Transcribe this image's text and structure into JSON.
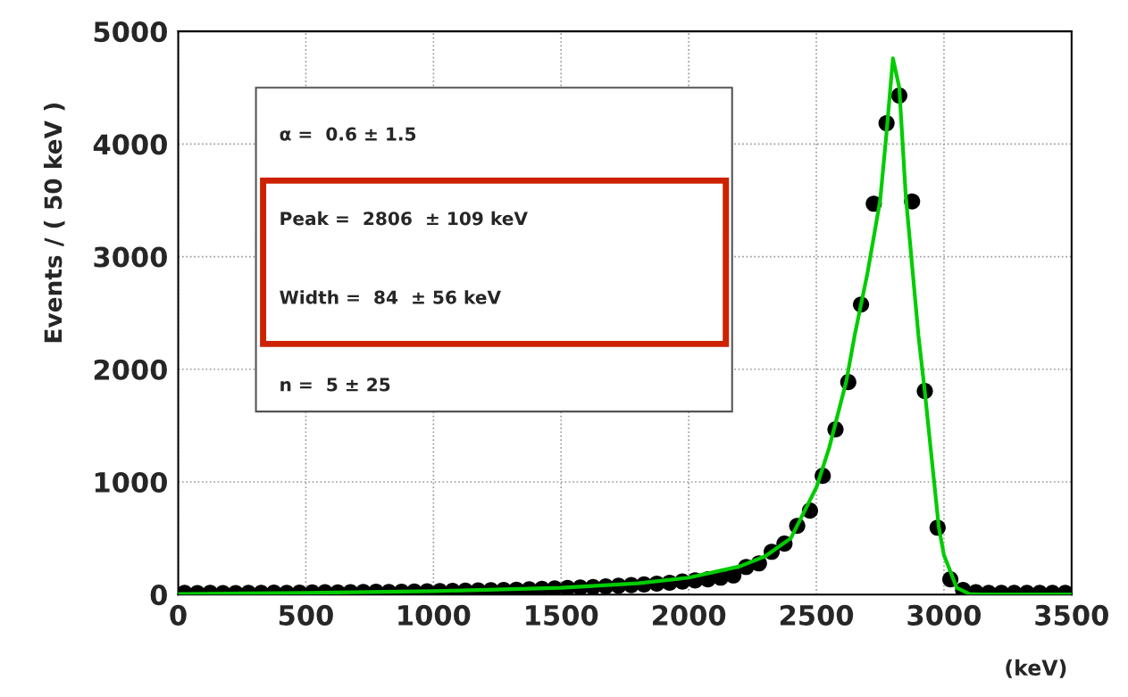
{
  "chart_data": {
    "type": "scatter",
    "xlabel": "(keV)",
    "ylabel": "Events / ( 50 keV )",
    "xlim": [
      0,
      3500
    ],
    "ylim": [
      0,
      5000
    ],
    "xticks": [
      0,
      500,
      1000,
      1500,
      2000,
      2500,
      3000,
      3500
    ],
    "yticks": [
      0,
      1000,
      2000,
      3000,
      4000,
      5000
    ],
    "grid": true,
    "legend": false,
    "series": [
      {
        "color": "#000000",
        "marker": "circle",
        "x": [
          25,
          75,
          125,
          175,
          225,
          275,
          325,
          375,
          425,
          475,
          525,
          575,
          625,
          675,
          725,
          775,
          825,
          875,
          925,
          975,
          1025,
          1075,
          1125,
          1175,
          1225,
          1275,
          1325,
          1375,
          1425,
          1475,
          1525,
          1575,
          1625,
          1675,
          1725,
          1775,
          1825,
          1875,
          1925,
          1975,
          2025,
          2075,
          2125,
          2175,
          2225,
          2275,
          2325,
          2375,
          2425,
          2475,
          2525,
          2575,
          2625,
          2675,
          2725,
          2775,
          2825,
          2875,
          2925,
          2975,
          3025,
          3075,
          3125,
          3175,
          3225,
          3275,
          3325,
          3375,
          3425,
          3475
        ],
        "values": [
          15,
          12,
          14,
          13,
          12,
          15,
          14,
          16,
          15,
          17,
          18,
          20,
          19,
          21,
          22,
          24,
          23,
          25,
          26,
          28,
          30,
          32,
          34,
          36,
          38,
          40,
          43,
          46,
          50,
          54,
          58,
          62,
          66,
          72,
          78,
          84,
          90,
          97,
          105,
          115,
          125,
          135,
          150,
          170,
          245,
          277,
          380,
          452,
          610,
          745,
          1054,
          1466,
          1886,
          2575,
          3470,
          4185,
          4430,
          3490,
          1807,
          594,
          135,
          40,
          20,
          15,
          15,
          15,
          15,
          15,
          15,
          15
        ]
      },
      {
        "type": "line",
        "color": "#00cc00",
        "marker": "none",
        "line_style": "solid",
        "x": [
          0,
          500,
          1000,
          1500,
          1800,
          2000,
          2200,
          2300,
          2400,
          2500,
          2550,
          2618,
          2650,
          2700,
          2750,
          2775,
          2800,
          2825,
          2850,
          2900,
          2925,
          2950,
          2980,
          3000,
          3050,
          3100,
          3150,
          3500
        ],
        "values": [
          5,
          15,
          30,
          60,
          100,
          150,
          250,
          340,
          500,
          950,
          1300,
          1900,
          2300,
          2850,
          3500,
          4100,
          4760,
          4500,
          3550,
          2300,
          1800,
          1250,
          594,
          350,
          60,
          5,
          0,
          0
        ]
      }
    ],
    "annotations": [
      "α =  0.6 ± 1.5",
      "Peak =  2806  ± 109 keV",
      "Width =  84  ± 56 keV",
      "n =  5 ± 25"
    ]
  }
}
